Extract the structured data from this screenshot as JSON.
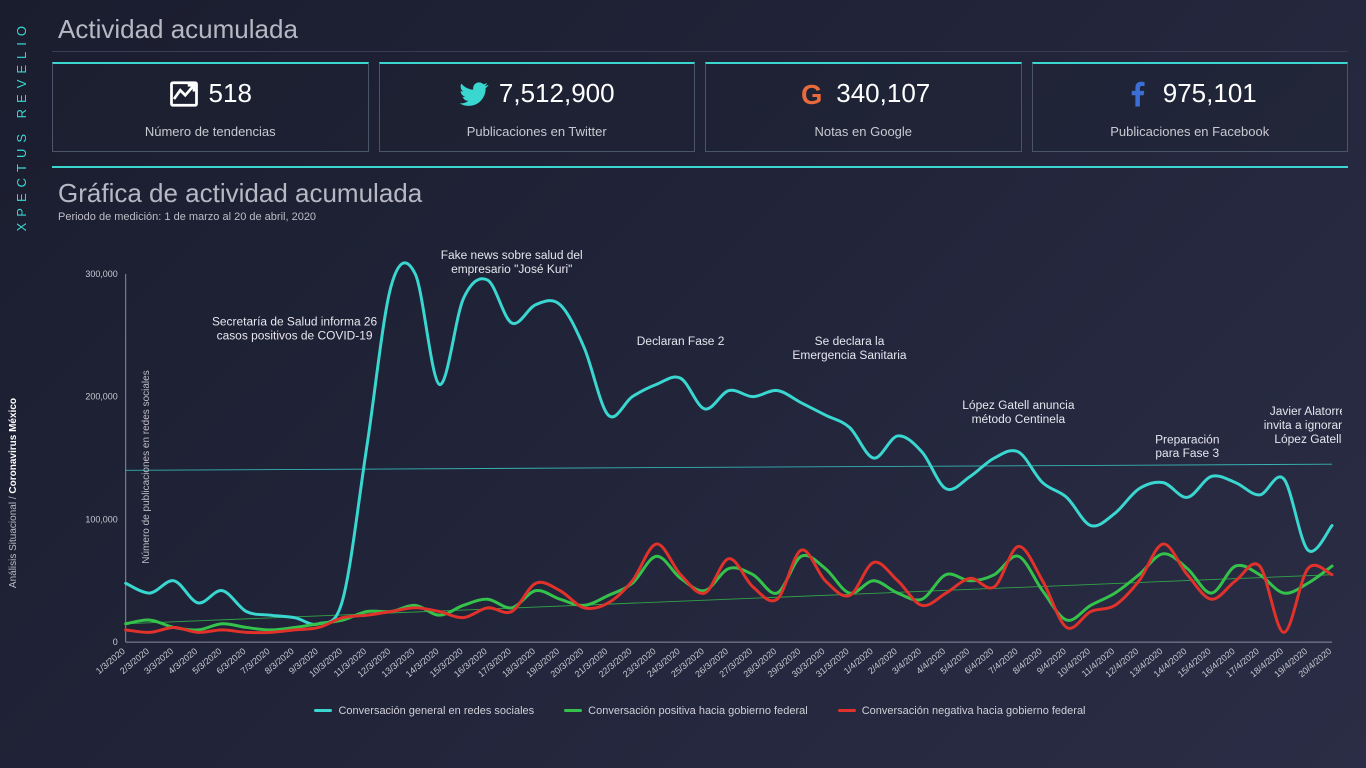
{
  "brand": "XPECTUS REVELIO",
  "side_caption_prefix": "Análisis Situacional / ",
  "side_caption_bold": "Coronavirus México",
  "header": {
    "title": "Actividad acumulada"
  },
  "stats": [
    {
      "icon": "trend-up-icon",
      "icon_color": "#ffffff",
      "value": "518",
      "label": "Número de tendencias"
    },
    {
      "icon": "twitter-icon",
      "icon_color": "#3ad6d0",
      "value": "7,512,900",
      "label": "Publicaciones en Twitter"
    },
    {
      "icon": "google-g-icon",
      "icon_color": "#e96a3a",
      "value": "340,107",
      "label": "Notas en Google"
    },
    {
      "icon": "facebook-icon",
      "icon_color": "#3b6fd6",
      "value": "975,101",
      "label": "Publicaciones en Facebook"
    }
  ],
  "chart": {
    "title": "Gráfica de actividad acumulada",
    "subtitle": "Periodo de medición:  1 de marzo al 20 de abril, 2020",
    "y_axis_label": "Número de publicaciones en redes sociales",
    "type": "line",
    "background_color": "transparent",
    "grid_color": "#3c4055",
    "axis_color": "#8a8da0",
    "text_color": "#c9c9d2",
    "ylim": [
      0,
      300000
    ],
    "yticks": [
      0,
      100000,
      200000,
      300000
    ],
    "ytick_labels": [
      "0",
      "100,000",
      "200,000",
      "300,000"
    ],
    "line_width": 3,
    "label_fontsize": 10,
    "tick_fontsize": 9,
    "annotation_fontsize": 12,
    "x_labels": [
      "1/3/2020",
      "2/3/2020",
      "3/3/2020",
      "4/3/2020",
      "5/3/2020",
      "6/3/2020",
      "7/3/2020",
      "8/3/2020",
      "9/3/2020",
      "10/3/2020",
      "11/3/2020",
      "12/3/2020",
      "13/3/2020",
      "14/3/2020",
      "15/3/2020",
      "16/3/2020",
      "17/3/2020",
      "18/3/2020",
      "19/3/2020",
      "20/3/2020",
      "21/3/2020",
      "22/3/2020",
      "23/3/2020",
      "24/3/2020",
      "25/3/2020",
      "26/3/2020",
      "27/3/2020",
      "28/3/2020",
      "29/3/2020",
      "30/3/2020",
      "31/3/2020",
      "1/4/2020",
      "2/4/2020",
      "3/4/2020",
      "4/4/2020",
      "5/4/2020",
      "6/4/2020",
      "7/4/2020",
      "8/4/2020",
      "9/4/2020",
      "10/4/2020",
      "11/4/2020",
      "12/4/2020",
      "13/4/2020",
      "14/4/2020",
      "15/4/2020",
      "16/4/2020",
      "17/4/2020",
      "18/4/2020",
      "19/4/2020",
      "20/4/2020"
    ],
    "trend_lines": [
      {
        "color": "#3ad6d0",
        "y_start": 140000,
        "y_end": 145000
      },
      {
        "color": "#34c24b",
        "y_start": 15000,
        "y_end": 55000
      }
    ],
    "series": [
      {
        "name": "Conversación general en redes sociales",
        "color": "#3ad6d0",
        "values": [
          48000,
          40000,
          50000,
          32000,
          42000,
          25000,
          22000,
          20000,
          15000,
          35000,
          160000,
          290000,
          300000,
          210000,
          280000,
          295000,
          260000,
          275000,
          275000,
          240000,
          185000,
          200000,
          210000,
          215000,
          190000,
          205000,
          200000,
          205000,
          195000,
          185000,
          175000,
          150000,
          168000,
          155000,
          125000,
          135000,
          150000,
          155000,
          130000,
          118000,
          95000,
          105000,
          125000,
          130000,
          118000,
          135000,
          130000,
          120000,
          133000,
          75000,
          95000
        ]
      },
      {
        "name": "Conversación positiva hacia gobierno federal",
        "color": "#34c24b",
        "values": [
          15000,
          18000,
          12000,
          10000,
          15000,
          12000,
          10000,
          12000,
          15000,
          18000,
          25000,
          25000,
          30000,
          22000,
          30000,
          35000,
          28000,
          42000,
          35000,
          30000,
          38000,
          48000,
          70000,
          52000,
          42000,
          60000,
          55000,
          40000,
          70000,
          60000,
          40000,
          50000,
          40000,
          35000,
          55000,
          50000,
          55000,
          70000,
          42000,
          18000,
          30000,
          40000,
          55000,
          72000,
          60000,
          40000,
          62000,
          55000,
          40000,
          48000,
          62000
        ]
      },
      {
        "name": "Conversación negativa hacia gobierno federal",
        "color": "#e0322b",
        "values": [
          10000,
          8000,
          12000,
          8000,
          10000,
          8000,
          8000,
          10000,
          12000,
          20000,
          22000,
          25000,
          28000,
          25000,
          20000,
          28000,
          25000,
          48000,
          42000,
          28000,
          32000,
          50000,
          80000,
          55000,
          40000,
          68000,
          45000,
          35000,
          75000,
          50000,
          38000,
          65000,
          50000,
          30000,
          40000,
          52000,
          45000,
          78000,
          50000,
          12000,
          25000,
          30000,
          50000,
          80000,
          55000,
          35000,
          50000,
          62000,
          8000,
          60000,
          55000
        ]
      }
    ],
    "annotations": [
      {
        "x_index": 7,
        "y": 258000,
        "lines": [
          "Secretaría de Salud informa  26",
          "casos positivos de COVID-19"
        ]
      },
      {
        "x_index": 16,
        "y": 312000,
        "lines": [
          "Fake news sobre salud del",
          "empresario \"José Kuri\""
        ]
      },
      {
        "x_index": 23,
        "y": 242000,
        "lines": [
          "Declaran Fase 2"
        ]
      },
      {
        "x_index": 30,
        "y": 242000,
        "lines": [
          "Se declara  la",
          "Emergencia Sanitaria"
        ]
      },
      {
        "x_index": 37,
        "y": 190000,
        "lines": [
          "López Gatell anuncia",
          "método Centinela"
        ]
      },
      {
        "x_index": 44,
        "y": 162000,
        "lines": [
          "Preparación",
          "para Fase 3"
        ]
      },
      {
        "x_index": 49,
        "y": 185000,
        "lines": [
          "Javier Alatorre",
          "invita a ignorar a",
          "López Gatell"
        ]
      }
    ]
  }
}
